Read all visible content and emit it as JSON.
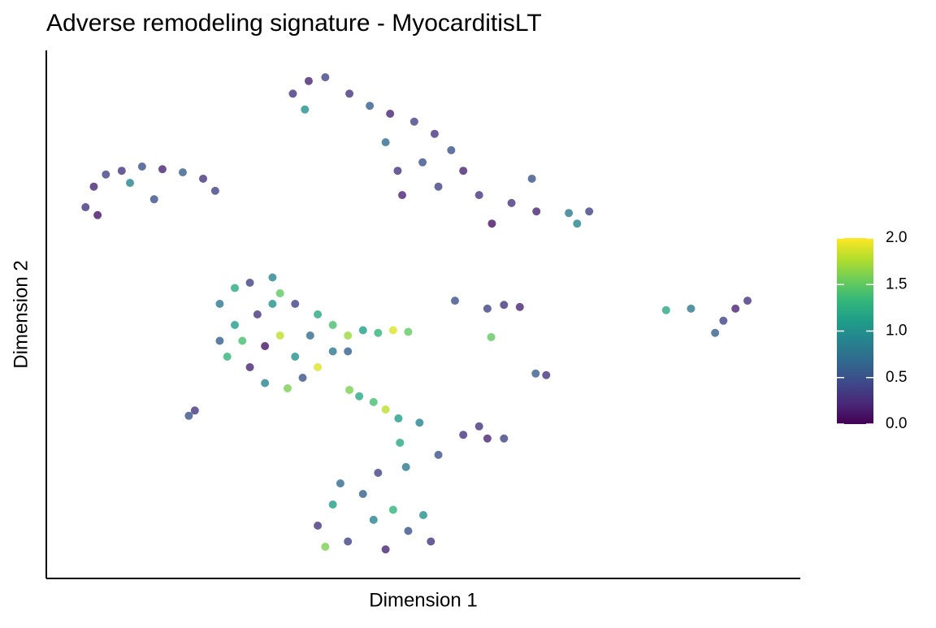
{
  "chart_data": {
    "type": "scatter",
    "title": "Adverse remodeling signature - MyocarditisLT",
    "x_label": "Dimension 1",
    "y_label": "Dimension 2",
    "xlim": [
      0,
      100
    ],
    "ylim": [
      0,
      100
    ],
    "colormap": "viridis",
    "clim": [
      0,
      2
    ],
    "cticks": [
      {
        "value": 0,
        "label": "0.0"
      },
      0.5,
      {
        "value": 1,
        "label": "1.0"
      },
      1.5,
      {
        "value": 2,
        "label": "2.0"
      }
    ],
    "x": [
      5.2,
      6.3,
      7.9,
      10,
      12.7,
      15.4,
      18.1,
      20.8,
      22.4,
      6.8,
      11.1,
      14.3,
      32.7,
      34.8,
      37,
      40.2,
      42.9,
      45.6,
      48.8,
      51.5,
      53.7,
      55.3,
      57.4,
      59.1,
      45,
      46.6,
      47.2,
      49.9,
      52,
      34.3,
      61.7,
      65,
      69.3,
      72,
      70.4,
      64.4,
      23,
      25,
      27,
      30,
      31,
      28,
      25,
      23,
      24,
      27,
      29,
      32,
      34,
      33,
      31,
      35,
      36,
      33,
      38,
      38,
      40,
      42,
      44,
      46,
      48,
      29,
      26,
      36,
      40,
      30,
      40.2,
      41.5,
      43.4,
      45,
      46.7,
      49.5,
      60.7,
      58.5,
      62.8,
      54.2,
      59,
      66.3,
      64.9,
      18.9,
      19.7,
      91.4,
      89.8,
      93,
      88.7,
      85.5,
      82.2,
      43.4,
      36,
      38,
      40,
      42,
      45,
      46,
      48,
      50,
      51,
      39,
      44,
      47.7,
      52,
      55.3,
      58.5,
      60.7,
      57.4,
      46.9,
      37
    ],
    "y": [
      70.3,
      74.2,
      76.5,
      77.2,
      78,
      77.5,
      76.9,
      75.7,
      73.4,
      68.8,
      74.9,
      71.8,
      91.8,
      94.2,
      94.9,
      91.8,
      89.5,
      88,
      86.5,
      84.2,
      81.1,
      77.2,
      72.6,
      67.2,
      82.6,
      77.2,
      72.6,
      78.8,
      74.2,
      88.8,
      71.1,
      69.5,
      69.2,
      69.5,
      67.2,
      75.7,
      52,
      55,
      56,
      57,
      54,
      50,
      48,
      45,
      42,
      40,
      37,
      36,
      38,
      42,
      46,
      46,
      50,
      52,
      48,
      43,
      46,
      47,
      46.5,
      47,
      46.7,
      44,
      45,
      40,
      43,
      52,
      35.7,
      34.5,
      33.4,
      32,
      30.3,
      29.5,
      51.8,
      51.1,
      51.4,
      52.6,
      45.7,
      38.5,
      38.8,
      30.8,
      31.8,
      51.1,
      48.8,
      52.6,
      46.5,
      51.1,
      50.8,
      11.1,
      10,
      14,
      7,
      16,
      5.5,
      13,
      9,
      12,
      7,
      18,
      20,
      21.1,
      23.4,
      27.2,
      26.5,
      26.5,
      28.8,
      25.7,
      6
    ],
    "values": [
      0.3,
      0.2,
      0.4,
      0.3,
      0.5,
      0.2,
      0.6,
      0.3,
      0.4,
      0.1,
      0.9,
      0.5,
      0.3,
      0.2,
      0.4,
      0.3,
      0.6,
      0.2,
      0.4,
      0.3,
      0.5,
      0.2,
      0.3,
      0.1,
      0.7,
      0.3,
      0.2,
      0.5,
      0.4,
      1.0,
      0.3,
      0.2,
      0.8,
      0.4,
      0.9,
      0.5,
      0.8,
      1.2,
      0.4,
      0.9,
      1.5,
      0.3,
      1.1,
      0.6,
      1.3,
      0.2,
      0.9,
      1.6,
      0.5,
      1.0,
      1.8,
      0.7,
      1.2,
      0.4,
      1.4,
      0.8,
      1.7,
      1.1,
      1.3,
      1.9,
      1.5,
      0.1,
      1.4,
      1.9,
      0.6,
      1.0,
      1.6,
      1.2,
      1.4,
      1.8,
      1.1,
      0.9,
      0.3,
      0.4,
      0.2,
      0.5,
      1.5,
      0.3,
      0.6,
      0.5,
      0.3,
      0.2,
      0.4,
      0.3,
      0.6,
      0.8,
      1.2,
      0.9,
      0.3,
      1.1,
      0.4,
      0.6,
      0.2,
      1.3,
      0.5,
      1.0,
      0.3,
      0.7,
      0.4,
      0.8,
      0.5,
      0.3,
      0.2,
      0.4,
      0.3,
      1.2,
      1.6
    ]
  }
}
